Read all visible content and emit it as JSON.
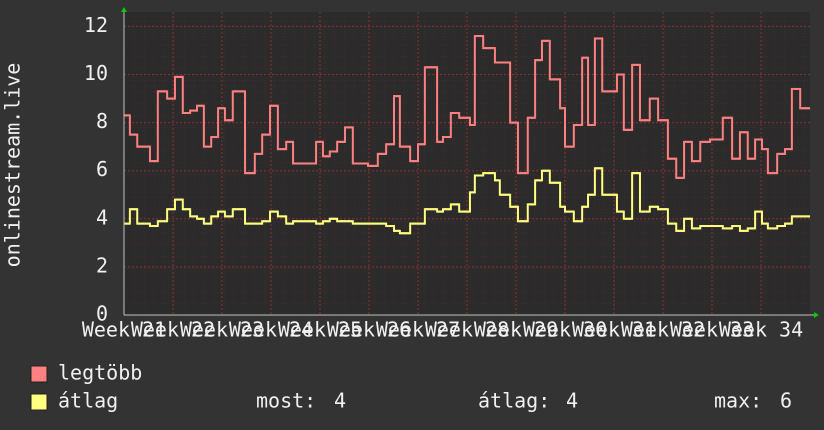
{
  "chart_data": {
    "type": "step-line",
    "y_label": "onlinestream.live",
    "xlim": [
      21,
      35
    ],
    "xticks": [
      {
        "value": 21,
        "label": "Week 21"
      },
      {
        "value": 22,
        "label": "Week 22"
      },
      {
        "value": 23,
        "label": "Week 23"
      },
      {
        "value": 24,
        "label": "Week 24"
      },
      {
        "value": 25,
        "label": "Week 25"
      },
      {
        "value": 26,
        "label": "Week 26"
      },
      {
        "value": 27,
        "label": "Week 27"
      },
      {
        "value": 28,
        "label": "Week 28"
      },
      {
        "value": 29,
        "label": "Week 29"
      },
      {
        "value": 30,
        "label": "Week 30"
      },
      {
        "value": 31,
        "label": "Week 31"
      },
      {
        "value": 32,
        "label": "Week 32"
      },
      {
        "value": 33,
        "label": "Week 33"
      },
      {
        "value": 34,
        "label": "Week 34"
      }
    ],
    "ylim": [
      0,
      12.6
    ],
    "yticks": [
      0,
      2,
      4,
      6,
      8,
      10,
      12
    ],
    "grid": true,
    "x": [
      21.0,
      21.12,
      21.27,
      21.53,
      21.69,
      21.88,
      22.04,
      22.2,
      22.35,
      22.49,
      22.63,
      22.78,
      22.92,
      23.06,
      23.22,
      23.47,
      23.67,
      23.82,
      23.98,
      24.14,
      24.31,
      24.45,
      24.92,
      25.06,
      25.2,
      25.35,
      25.51,
      25.67,
      25.98,
      26.18,
      26.35,
      26.51,
      26.63,
      26.84,
      27.0,
      27.14,
      27.39,
      27.51,
      27.67,
      27.84,
      28.06,
      28.16,
      28.33,
      28.57,
      28.67,
      28.88,
      29.04,
      29.24,
      29.39,
      29.53,
      29.69,
      29.9,
      30.0,
      30.18,
      30.35,
      30.47,
      30.61,
      30.76,
      31.06,
      31.2,
      31.37,
      31.53,
      31.73,
      31.9,
      32.1,
      32.27,
      32.43,
      32.59,
      32.76,
      32.96,
      33.22,
      33.41,
      33.57,
      33.73,
      33.88,
      34.02,
      34.14,
      34.33,
      34.49,
      34.63,
      34.8,
      34.96
    ],
    "series": [
      {
        "name": "legtöbb",
        "color": "#ff8080",
        "values": [
          8.3,
          7.5,
          7.0,
          6.4,
          9.3,
          9.0,
          9.9,
          8.4,
          8.5,
          8.7,
          7.0,
          7.4,
          8.6,
          8.1,
          9.3,
          5.9,
          6.7,
          7.5,
          8.7,
          6.9,
          7.2,
          6.3,
          7.2,
          6.6,
          6.8,
          7.2,
          7.8,
          6.3,
          6.2,
          6.7,
          7.1,
          9.1,
          7.0,
          6.4,
          7.1,
          10.3,
          7.2,
          7.4,
          8.4,
          8.2,
          7.9,
          11.6,
          11.1,
          10.5,
          10.5,
          8.0,
          5.9,
          8.2,
          10.6,
          11.4,
          9.8,
          8.6,
          7.0,
          7.9,
          10.7,
          7.9,
          11.5,
          9.3,
          10.0,
          7.7,
          10.4,
          8.1,
          9.0,
          8.1,
          6.5,
          5.7,
          7.2,
          6.4,
          7.2,
          7.3,
          8.2,
          6.5,
          7.6,
          6.5,
          7.3,
          6.9,
          5.9,
          6.7,
          6.9,
          9.4,
          8.6,
          8.6
        ]
      },
      {
        "name": "átlag",
        "color": "#ffff80",
        "values": [
          3.8,
          4.4,
          3.8,
          3.7,
          3.9,
          4.4,
          4.8,
          4.4,
          4.1,
          4.0,
          3.8,
          4.1,
          4.3,
          4.1,
          4.4,
          3.8,
          3.8,
          3.9,
          4.3,
          4.1,
          3.8,
          3.9,
          3.8,
          3.9,
          4.0,
          3.9,
          3.9,
          3.8,
          3.8,
          3.8,
          3.7,
          3.5,
          3.4,
          3.8,
          3.8,
          4.4,
          4.3,
          4.4,
          4.6,
          4.3,
          5.1,
          5.8,
          5.9,
          5.6,
          5.0,
          4.5,
          3.9,
          4.6,
          5.6,
          6.0,
          5.5,
          4.5,
          4.3,
          3.9,
          4.5,
          5.0,
          6.1,
          5.0,
          4.3,
          4.0,
          5.9,
          4.3,
          4.5,
          4.4,
          3.8,
          3.5,
          4.0,
          3.6,
          3.7,
          3.7,
          3.6,
          3.7,
          3.5,
          3.6,
          4.3,
          3.8,
          3.6,
          3.7,
          3.8,
          4.1,
          4.1,
          4.1
        ]
      }
    ],
    "stats": [
      {
        "label": "most:",
        "value": 4
      },
      {
        "label": "átlag:",
        "value": 4
      },
      {
        "label": "max:",
        "value": 6
      }
    ]
  }
}
